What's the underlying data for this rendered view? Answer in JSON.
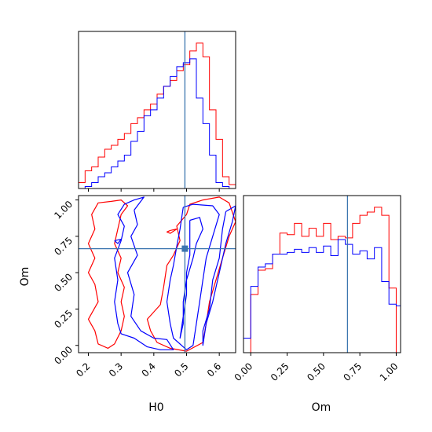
{
  "chart_data": {
    "type": "corner",
    "parameters": [
      "H0",
      "Om"
    ],
    "truths": {
      "H0": 0.495,
      "Om": 0.665
    },
    "colors": {
      "series_a": "#ff0000",
      "series_b": "#0000ff",
      "truth": "#3b75af",
      "frame": "#000000"
    },
    "axes": {
      "H0_range": [
        0.17,
        0.65
      ],
      "Om_range": [
        -0.05,
        1.03
      ],
      "H0_ticks": [
        {
          "v": 0.2,
          "label": "0.2"
        },
        {
          "v": 0.3,
          "label": "0.3"
        },
        {
          "v": 0.4,
          "label": "0.4"
        },
        {
          "v": 0.5,
          "label": "0.5"
        },
        {
          "v": 0.6,
          "label": "0.6"
        }
      ],
      "Om_ticks": [
        {
          "v": 0.0,
          "label": "0.00"
        },
        {
          "v": 0.25,
          "label": "0.25"
        },
        {
          "v": 0.5,
          "label": "0.50"
        },
        {
          "v": 0.75,
          "label": "0.75"
        },
        {
          "v": 1.0,
          "label": "1.00"
        }
      ],
      "hist_top_ticks": [
        0.2,
        0.3,
        0.4,
        0.5,
        0.6
      ]
    },
    "hist_H0": {
      "bin_edges": [
        0.17,
        0.19,
        0.21,
        0.23,
        0.25,
        0.27,
        0.29,
        0.31,
        0.33,
        0.35,
        0.37,
        0.39,
        0.41,
        0.43,
        0.45,
        0.47,
        0.49,
        0.51,
        0.53,
        0.55,
        0.57,
        0.59,
        0.61,
        0.63,
        0.65
      ],
      "series_a": [
        3,
        9,
        11,
        16,
        20,
        22,
        25,
        28,
        33,
        36,
        40,
        43,
        48,
        52,
        55,
        60,
        63,
        70,
        74,
        67,
        40,
        25,
        6,
        2
      ],
      "series_b": [
        0,
        1,
        3,
        6,
        8,
        11,
        14,
        17,
        24,
        29,
        37,
        40,
        46,
        52,
        57,
        62,
        64,
        66,
        46,
        33,
        17,
        3,
        1,
        0
      ]
    },
    "hist_Om": {
      "bin_edges": [
        -0.05,
        0.0,
        0.05,
        0.1,
        0.15,
        0.2,
        0.25,
        0.3,
        0.35,
        0.4,
        0.45,
        0.5,
        0.55,
        0.6,
        0.65,
        0.7,
        0.75,
        0.8,
        0.85,
        0.9,
        0.95,
        1.0,
        1.03
      ],
      "series_a": [
        0,
        36,
        51,
        52,
        61,
        74,
        73,
        80,
        72,
        77,
        72,
        80,
        70,
        72,
        71,
        80,
        85,
        87,
        90,
        85,
        40,
        0
      ],
      "series_b": [
        9,
        41,
        53,
        55,
        61,
        61,
        62,
        64,
        62,
        65,
        62,
        66,
        60,
        70,
        67,
        61,
        63,
        58,
        65,
        44,
        30,
        29
      ]
    },
    "contours": {
      "series_a": [
        [
          [
            0.27,
            0.99
          ],
          [
            0.3,
            1.0
          ],
          [
            0.32,
            0.96
          ],
          [
            0.3,
            0.9
          ],
          [
            0.29,
            0.8
          ],
          [
            0.28,
            0.7
          ],
          [
            0.3,
            0.6
          ],
          [
            0.29,
            0.5
          ],
          [
            0.31,
            0.4
          ],
          [
            0.3,
            0.3
          ],
          [
            0.31,
            0.2
          ],
          [
            0.3,
            0.1
          ],
          [
            0.28,
            0.01
          ],
          [
            0.26,
            -0.02
          ],
          [
            0.23,
            0.01
          ],
          [
            0.22,
            0.1
          ],
          [
            0.2,
            0.18
          ],
          [
            0.23,
            0.3
          ],
          [
            0.22,
            0.42
          ],
          [
            0.2,
            0.5
          ],
          [
            0.22,
            0.6
          ],
          [
            0.2,
            0.7
          ],
          [
            0.22,
            0.8
          ],
          [
            0.21,
            0.9
          ],
          [
            0.23,
            0.98
          ],
          [
            0.27,
            0.99
          ]
        ],
        [
          [
            0.55,
            1.0
          ],
          [
            0.6,
            1.02
          ],
          [
            0.63,
            0.98
          ],
          [
            0.65,
            0.85
          ],
          [
            0.63,
            0.75
          ],
          [
            0.61,
            0.6
          ],
          [
            0.59,
            0.45
          ],
          [
            0.57,
            0.3
          ],
          [
            0.56,
            0.15
          ],
          [
            0.55,
            0.02
          ],
          [
            0.5,
            -0.04
          ],
          [
            0.45,
            -0.02
          ],
          [
            0.41,
            0.02
          ],
          [
            0.39,
            0.1
          ],
          [
            0.38,
            0.18
          ],
          [
            0.42,
            0.28
          ],
          [
            0.43,
            0.4
          ],
          [
            0.44,
            0.55
          ],
          [
            0.46,
            0.62
          ],
          [
            0.48,
            0.72
          ],
          [
            0.47,
            0.82
          ],
          [
            0.5,
            0.9
          ],
          [
            0.51,
            0.97
          ],
          [
            0.55,
            1.0
          ]
        ],
        [
          [
            0.45,
            0.79
          ],
          [
            0.47,
            0.8
          ],
          [
            0.45,
            0.77
          ],
          [
            0.44,
            0.78
          ],
          [
            0.45,
            0.79
          ]
        ]
      ],
      "series_b": [
        [
          [
            0.34,
            0.93
          ],
          [
            0.37,
            1.02
          ],
          [
            0.34,
            1.0
          ],
          [
            0.31,
            0.97
          ],
          [
            0.29,
            0.9
          ],
          [
            0.31,
            0.82
          ],
          [
            0.3,
            0.72
          ],
          [
            0.28,
            0.6
          ],
          [
            0.29,
            0.45
          ],
          [
            0.28,
            0.3
          ],
          [
            0.29,
            0.15
          ],
          [
            0.3,
            0.08
          ],
          [
            0.34,
            0.05
          ],
          [
            0.38,
            -0.01
          ],
          [
            0.42,
            -0.03
          ],
          [
            0.46,
            -0.03
          ],
          [
            0.44,
            0.04
          ],
          [
            0.4,
            0.05
          ],
          [
            0.36,
            0.1
          ],
          [
            0.33,
            0.2
          ],
          [
            0.34,
            0.35
          ],
          [
            0.32,
            0.5
          ],
          [
            0.35,
            0.62
          ],
          [
            0.33,
            0.75
          ],
          [
            0.35,
            0.83
          ],
          [
            0.34,
            0.93
          ]
        ],
        [
          [
            0.49,
            0.95
          ],
          [
            0.52,
            0.97
          ],
          [
            0.58,
            0.96
          ],
          [
            0.6,
            0.9
          ],
          [
            0.58,
            0.75
          ],
          [
            0.56,
            0.6
          ],
          [
            0.55,
            0.45
          ],
          [
            0.54,
            0.3
          ],
          [
            0.53,
            0.15
          ],
          [
            0.52,
            0.0
          ],
          [
            0.5,
            -0.03
          ],
          [
            0.46,
            0.05
          ],
          [
            0.45,
            0.15
          ],
          [
            0.44,
            0.3
          ],
          [
            0.45,
            0.45
          ],
          [
            0.46,
            0.55
          ],
          [
            0.47,
            0.68
          ],
          [
            0.48,
            0.8
          ],
          [
            0.49,
            0.95
          ]
        ],
        [
          [
            0.62,
            0.92
          ],
          [
            0.65,
            0.96
          ],
          [
            0.64,
            0.85
          ],
          [
            0.62,
            0.7
          ],
          [
            0.6,
            0.5
          ],
          [
            0.58,
            0.3
          ],
          [
            0.56,
            0.15
          ],
          [
            0.55,
            0.0
          ],
          [
            0.55,
            0.1
          ],
          [
            0.57,
            0.25
          ],
          [
            0.58,
            0.45
          ],
          [
            0.6,
            0.6
          ],
          [
            0.61,
            0.8
          ],
          [
            0.62,
            0.92
          ]
        ],
        [
          [
            0.51,
            0.86
          ],
          [
            0.54,
            0.88
          ],
          [
            0.55,
            0.8
          ],
          [
            0.53,
            0.7
          ],
          [
            0.52,
            0.6
          ],
          [
            0.5,
            0.45
          ],
          [
            0.49,
            0.3
          ],
          [
            0.49,
            0.15
          ],
          [
            0.48,
            0.05
          ],
          [
            0.49,
            0.2
          ],
          [
            0.5,
            0.35
          ],
          [
            0.5,
            0.5
          ],
          [
            0.51,
            0.62
          ],
          [
            0.51,
            0.75
          ],
          [
            0.51,
            0.86
          ]
        ],
        [
          [
            0.28,
            0.72
          ],
          [
            0.3,
            0.73
          ],
          [
            0.29,
            0.7
          ],
          [
            0.28,
            0.72
          ]
        ]
      ]
    }
  }
}
